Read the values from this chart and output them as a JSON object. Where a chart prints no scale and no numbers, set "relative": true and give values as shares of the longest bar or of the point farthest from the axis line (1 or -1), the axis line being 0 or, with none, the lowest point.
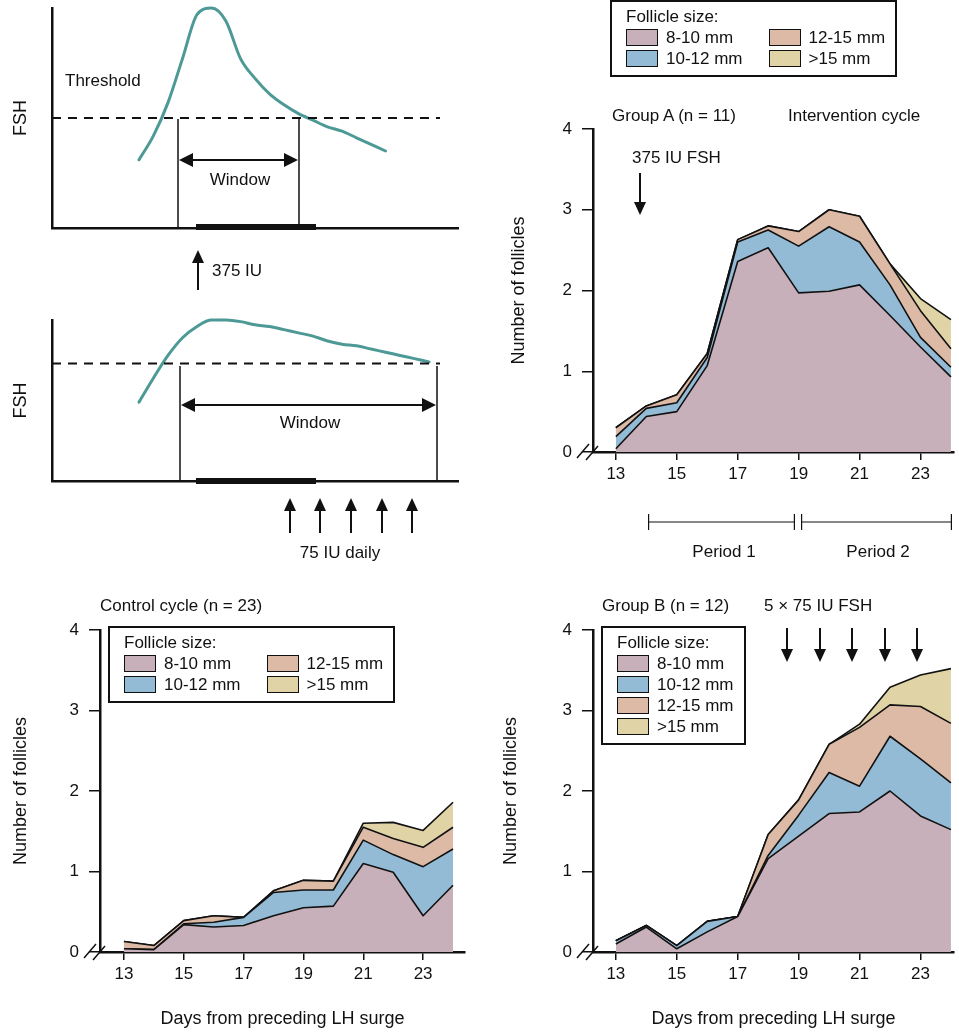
{
  "chart_data": [
    {
      "type": "line",
      "relative": true,
      "ylabel": "FSH",
      "categories": [
        null,
        null,
        null,
        null,
        null,
        null,
        null,
        null,
        null,
        null,
        null,
        null,
        null,
        null,
        null,
        null,
        null,
        null,
        null,
        null,
        null,
        null,
        null,
        null,
        null,
        null,
        null,
        null,
        null
      ],
      "series": [
        {
          "color": "#4d9996",
          "values": [
            null,
            null,
            null,
            null,
            null,
            null,
            0.31,
            0.42,
            0.57,
            0.77,
            0.97,
            1.0,
            0.94,
            0.77,
            0.68,
            0.61,
            0.56,
            0.52,
            0.49,
            0.46,
            0.44,
            0.41,
            0.38,
            0.35,
            null,
            null,
            null,
            null,
            null
          ]
        }
      ],
      "ref_lines": [
        {
          "axis": "y",
          "value": 0.5,
          "label": "Threshold",
          "line_style": "dashed",
          "color": "#111111"
        }
      ],
      "annotations": [
        "Window",
        "375 IU"
      ]
    },
    {
      "type": "area",
      "stacked": true,
      "title": "Group A (n = 11)",
      "subtitle": "Intervention cycle",
      "ylabel": "Number of follicles",
      "legend": "top",
      "legend_title": "Follicle size:",
      "x": [
        13,
        14,
        15,
        16,
        17,
        18,
        19,
        20,
        21,
        22,
        23,
        24
      ],
      "xlim": [
        12.25,
        24.1
      ],
      "xticks": [
        13,
        15,
        17,
        19,
        21,
        23
      ],
      "ylim": [
        0,
        4
      ],
      "yticks": [
        0,
        1,
        2,
        3,
        4
      ],
      "series": [
        {
          "name": "8-10 mm",
          "color": "#c8b0bb",
          "values": [
            0.04,
            0.44,
            0.5,
            1.07,
            2.36,
            2.53,
            1.97,
            1.99,
            2.07,
            1.69,
            1.3,
            0.93
          ]
        },
        {
          "name": "10-12 mm",
          "color": "#94bbd6",
          "values": [
            0.15,
            0.1,
            0.11,
            0.1,
            0.24,
            0.22,
            0.58,
            0.8,
            0.53,
            0.38,
            0.12,
            0.12
          ]
        },
        {
          "name": "12-15 mm",
          "color": "#dcbaa6",
          "values": [
            0.11,
            0.03,
            0.1,
            0.05,
            0.03,
            0.05,
            0.18,
            0.21,
            0.32,
            0.26,
            0.33,
            0.23
          ]
        },
        {
          "name": ">15 mm",
          "color": "#e0d3a6",
          "values": [
            0,
            0,
            0,
            0,
            0,
            0,
            0,
            0,
            0,
            0,
            0.15,
            0.36
          ]
        }
      ],
      "annotations": [
        "375 IU FSH",
        "Period 1",
        "Period 2"
      ]
    },
    {
      "type": "line",
      "relative": true,
      "ylabel": "FSH",
      "categories": [
        null,
        null,
        null,
        null,
        null,
        null,
        null,
        null,
        null,
        null,
        null,
        null,
        null,
        null,
        null,
        null,
        null,
        null,
        null,
        null,
        null,
        null,
        null,
        null,
        null,
        null,
        null,
        null,
        null
      ],
      "series": [
        {
          "color": "#4d9996",
          "values": [
            null,
            null,
            null,
            null,
            null,
            null,
            0.49,
            0.64,
            0.78,
            0.89,
            0.96,
            1.0,
            1.0,
            0.99,
            0.97,
            0.96,
            0.94,
            0.92,
            0.9,
            0.87,
            0.85,
            0.84,
            0.82,
            0.8,
            0.78,
            0.76,
            0.74,
            null,
            null
          ]
        }
      ],
      "ref_lines": [
        {
          "axis": "y",
          "value": 0.73,
          "line_style": "dashed",
          "color": "#111111"
        }
      ],
      "annotations": [
        "Window",
        "75 IU daily"
      ]
    },
    {
      "type": "area",
      "stacked": true,
      "title": "Control cycle (n = 23)",
      "xlabel": "Days from preceding LH surge",
      "ylabel": "Number of follicles",
      "legend": "top left",
      "legend_title": "Follicle size:",
      "x": [
        13,
        14,
        15,
        16,
        17,
        18,
        19,
        20,
        21,
        22,
        23,
        24
      ],
      "xlim": [
        12.2,
        24.4
      ],
      "xticks": [
        13,
        15,
        17,
        19,
        21,
        23
      ],
      "ylim": [
        0,
        4
      ],
      "yticks": [
        0,
        1,
        2,
        3,
        4
      ],
      "series": [
        {
          "name": "8-10 mm",
          "color": "#c8b0bb",
          "values": [
            0.04,
            0.03,
            0.34,
            0.31,
            0.33,
            0.45,
            0.55,
            0.57,
            1.1,
            0.99,
            0.45,
            0.83
          ]
        },
        {
          "name": "10-12 mm",
          "color": "#94bbd6",
          "values": [
            0,
            0,
            0.01,
            0.06,
            0.1,
            0.29,
            0.22,
            0.2,
            0.29,
            0.22,
            0.61,
            0.45
          ]
        },
        {
          "name": "12-15 mm",
          "color": "#dcbaa6",
          "values": [
            0.09,
            0.05,
            0.04,
            0.08,
            0,
            0.02,
            0.12,
            0.11,
            0.16,
            0.2,
            0.24,
            0.27
          ]
        },
        {
          "name": ">15 mm",
          "color": "#e0d3a6",
          "values": [
            0,
            0,
            0,
            0,
            0,
            0,
            0,
            0,
            0.05,
            0.2,
            0.21,
            0.31
          ]
        }
      ]
    },
    {
      "type": "area",
      "stacked": true,
      "title": "Group B (n = 12)",
      "xlabel": "Days from preceding LH surge",
      "ylabel": "Number of follicles",
      "legend": "top left",
      "legend_title": "Follicle size:",
      "x": [
        13,
        14,
        15,
        16,
        17,
        18,
        19,
        20,
        21,
        22,
        23,
        24
      ],
      "xlim": [
        12.25,
        24.1
      ],
      "xticks": [
        13,
        15,
        17,
        19,
        21,
        23
      ],
      "ylim": [
        0,
        4
      ],
      "yticks": [
        0,
        1,
        2,
        3,
        4
      ],
      "series": [
        {
          "name": "8-10 mm",
          "color": "#c8b0bb",
          "values": [
            0.1,
            0.31,
            0.04,
            0.25,
            0.44,
            1.16,
            1.44,
            1.72,
            1.74,
            2.0,
            1.69,
            1.52
          ]
        },
        {
          "name": "10-12 mm",
          "color": "#94bbd6",
          "values": [
            0.04,
            0.02,
            0.04,
            0.13,
            0,
            0.04,
            0.26,
            0.51,
            0.32,
            0.68,
            0.71,
            0.58
          ]
        },
        {
          "name": "12-15 mm",
          "color": "#dcbaa6",
          "values": [
            0,
            0,
            0,
            0,
            0,
            0.26,
            0.19,
            0.35,
            0.73,
            0.39,
            0.65,
            0.74
          ]
        },
        {
          "name": ">15 mm",
          "color": "#e0d3a6",
          "values": [
            0,
            0,
            0,
            0,
            0,
            0,
            0,
            0,
            0.04,
            0.22,
            0.39,
            0.68
          ]
        }
      ],
      "annotations": [
        "5 × 75 IU FSH"
      ]
    }
  ]
}
